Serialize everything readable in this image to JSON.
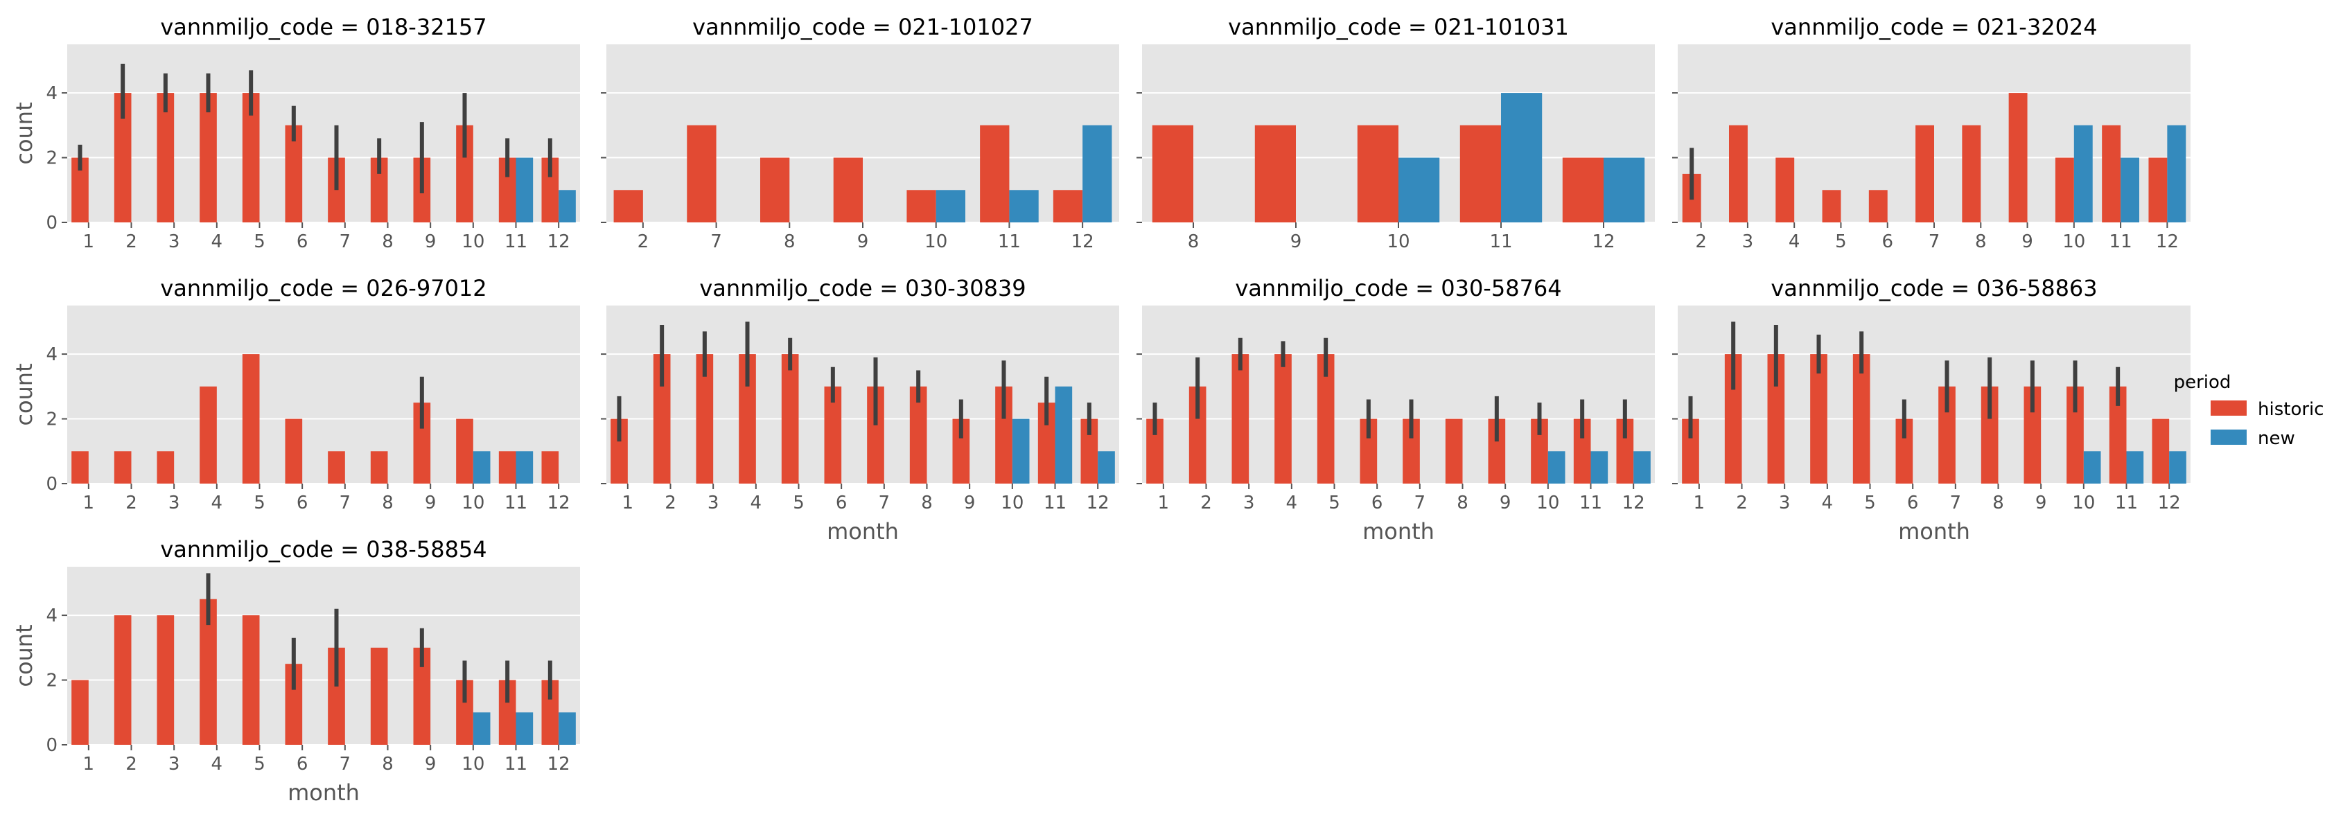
{
  "chart_data": {
    "type": "bar",
    "facet_variable": "vannmiljo_code",
    "xlabel": "month",
    "ylabel": "count",
    "ylim": [
      0,
      5.5
    ],
    "yticks": [
      0,
      2,
      4
    ],
    "grid": true,
    "legend": {
      "title": "period",
      "position": "right",
      "entries": [
        {
          "name": "historic",
          "color": "#E24A33"
        },
        {
          "name": "new",
          "color": "#348ABD"
        }
      ]
    },
    "facets": [
      {
        "title": "vannmiljo_code = 018-32157",
        "categories": [
          "1",
          "2",
          "3",
          "4",
          "5",
          "6",
          "7",
          "8",
          "9",
          "10",
          "11",
          "12"
        ],
        "series": [
          {
            "name": "historic",
            "values": [
              2,
              4,
              4,
              4,
              4,
              3,
              2,
              2,
              2,
              3,
              2,
              2
            ],
            "ci": [
              [
                1.6,
                2.4
              ],
              [
                3.2,
                4.9
              ],
              [
                3.4,
                4.6
              ],
              [
                3.4,
                4.6
              ],
              [
                3.3,
                4.7
              ],
              [
                2.5,
                3.6
              ],
              [
                1.0,
                3.0
              ],
              [
                1.5,
                2.6
              ],
              [
                0.9,
                3.1
              ],
              [
                2.0,
                4.0
              ],
              [
                1.4,
                2.6
              ],
              [
                1.4,
                2.6
              ]
            ]
          },
          {
            "name": "new",
            "values": [
              null,
              null,
              null,
              null,
              null,
              null,
              null,
              null,
              null,
              null,
              2,
              1
            ]
          }
        ]
      },
      {
        "title": "vannmiljo_code = 021-101027",
        "categories": [
          "2",
          "7",
          "8",
          "9",
          "10",
          "11",
          "12"
        ],
        "series": [
          {
            "name": "historic",
            "values": [
              1,
              3,
              2,
              2,
              1,
              3,
              1
            ]
          },
          {
            "name": "new",
            "values": [
              null,
              null,
              null,
              null,
              1,
              1,
              3
            ]
          }
        ]
      },
      {
        "title": "vannmiljo_code = 021-101031",
        "categories": [
          "8",
          "9",
          "10",
          "11",
          "12"
        ],
        "series": [
          {
            "name": "historic",
            "values": [
              3,
              3,
              3,
              3,
              2
            ]
          },
          {
            "name": "new",
            "values": [
              null,
              null,
              2,
              4,
              2
            ]
          }
        ]
      },
      {
        "title": "vannmiljo_code = 021-32024",
        "categories": [
          "2",
          "3",
          "4",
          "5",
          "6",
          "7",
          "8",
          "9",
          "10",
          "11",
          "12"
        ],
        "series": [
          {
            "name": "historic",
            "values": [
              1.5,
              3,
              2,
              1,
              1,
              3,
              3,
              4,
              2,
              3,
              2
            ],
            "ci": [
              [
                0.7,
                2.3
              ],
              null,
              null,
              null,
              null,
              null,
              null,
              null,
              null,
              null,
              null
            ]
          },
          {
            "name": "new",
            "values": [
              null,
              null,
              null,
              null,
              null,
              null,
              null,
              null,
              3,
              2,
              3
            ]
          }
        ]
      },
      {
        "title": "vannmiljo_code = 026-97012",
        "categories": [
          "1",
          "2",
          "3",
          "4",
          "5",
          "6",
          "7",
          "8",
          "9",
          "10",
          "11",
          "12"
        ],
        "series": [
          {
            "name": "historic",
            "values": [
              1,
              1,
              1,
              3,
              4,
              2,
              1,
              1,
              2.5,
              2,
              1,
              1
            ],
            "ci": [
              null,
              null,
              null,
              null,
              null,
              null,
              null,
              null,
              [
                1.7,
                3.3
              ],
              null,
              null,
              null
            ]
          },
          {
            "name": "new",
            "values": [
              null,
              null,
              null,
              null,
              null,
              null,
              null,
              null,
              null,
              1,
              1,
              null
            ]
          }
        ]
      },
      {
        "title": "vannmiljo_code = 030-30839",
        "categories": [
          "1",
          "2",
          "3",
          "4",
          "5",
          "6",
          "7",
          "8",
          "9",
          "10",
          "11",
          "12"
        ],
        "series": [
          {
            "name": "historic",
            "values": [
              2,
              4,
              4,
              4,
              4,
              3,
              3,
              3,
              2,
              3,
              2.5,
              2
            ],
            "ci": [
              [
                1.3,
                2.7
              ],
              [
                3.0,
                4.9
              ],
              [
                3.3,
                4.7
              ],
              [
                3.0,
                5.0
              ],
              [
                3.5,
                4.5
              ],
              [
                2.5,
                3.6
              ],
              [
                1.8,
                3.9
              ],
              [
                2.5,
                3.5
              ],
              [
                1.4,
                2.6
              ],
              [
                2.0,
                3.8
              ],
              [
                1.8,
                3.3
              ],
              [
                1.5,
                2.5
              ]
            ]
          },
          {
            "name": "new",
            "values": [
              null,
              null,
              null,
              null,
              null,
              null,
              null,
              null,
              null,
              2,
              3,
              1
            ]
          }
        ]
      },
      {
        "title": "vannmiljo_code = 030-58764",
        "categories": [
          "1",
          "2",
          "3",
          "4",
          "5",
          "6",
          "7",
          "8",
          "9",
          "10",
          "11",
          "12"
        ],
        "series": [
          {
            "name": "historic",
            "values": [
              2,
              3,
              4,
              4,
              4,
              2,
              2,
              2,
              2,
              2,
              2,
              2
            ],
            "ci": [
              [
                1.5,
                2.5
              ],
              [
                2.0,
                3.9
              ],
              [
                3.5,
                4.5
              ],
              [
                3.6,
                4.4
              ],
              [
                3.3,
                4.5
              ],
              [
                1.4,
                2.6
              ],
              [
                1.4,
                2.6
              ],
              null,
              [
                1.3,
                2.7
              ],
              [
                1.5,
                2.5
              ],
              [
                1.4,
                2.6
              ],
              [
                1.4,
                2.6
              ]
            ]
          },
          {
            "name": "new",
            "values": [
              null,
              null,
              null,
              null,
              null,
              null,
              null,
              null,
              null,
              1,
              1,
              1
            ]
          }
        ]
      },
      {
        "title": "vannmiljo_code = 036-58863",
        "categories": [
          "1",
          "2",
          "3",
          "4",
          "5",
          "6",
          "7",
          "8",
          "9",
          "10",
          "11",
          "12"
        ],
        "series": [
          {
            "name": "historic",
            "values": [
              2,
              4,
              4,
              4,
              4,
              2,
              3,
              3,
              3,
              3,
              3,
              2
            ],
            "ci": [
              [
                1.4,
                2.7
              ],
              [
                2.9,
                5.0
              ],
              [
                3.0,
                4.9
              ],
              [
                3.4,
                4.6
              ],
              [
                3.4,
                4.7
              ],
              [
                1.4,
                2.6
              ],
              [
                2.2,
                3.8
              ],
              [
                2.0,
                3.9
              ],
              [
                2.2,
                3.8
              ],
              [
                2.2,
                3.8
              ],
              [
                2.4,
                3.6
              ],
              null
            ]
          },
          {
            "name": "new",
            "values": [
              null,
              null,
              null,
              null,
              null,
              null,
              null,
              null,
              null,
              1,
              1,
              1
            ]
          }
        ]
      },
      {
        "title": "vannmiljo_code = 038-58854",
        "categories": [
          "1",
          "2",
          "3",
          "4",
          "5",
          "6",
          "7",
          "8",
          "9",
          "10",
          "11",
          "12"
        ],
        "series": [
          {
            "name": "historic",
            "values": [
              2,
              4,
              4,
              4.5,
              4,
              2.5,
              3,
              3,
              3,
              2,
              2,
              2
            ],
            "ci": [
              null,
              null,
              null,
              [
                3.7,
                5.3
              ],
              null,
              [
                1.7,
                3.3
              ],
              [
                1.8,
                4.2
              ],
              null,
              [
                2.4,
                3.6
              ],
              [
                1.3,
                2.6
              ],
              [
                1.3,
                2.6
              ],
              [
                1.4,
                2.6
              ]
            ]
          },
          {
            "name": "new",
            "values": [
              null,
              null,
              null,
              null,
              null,
              null,
              null,
              null,
              null,
              1,
              1,
              1
            ]
          }
        ]
      }
    ]
  }
}
